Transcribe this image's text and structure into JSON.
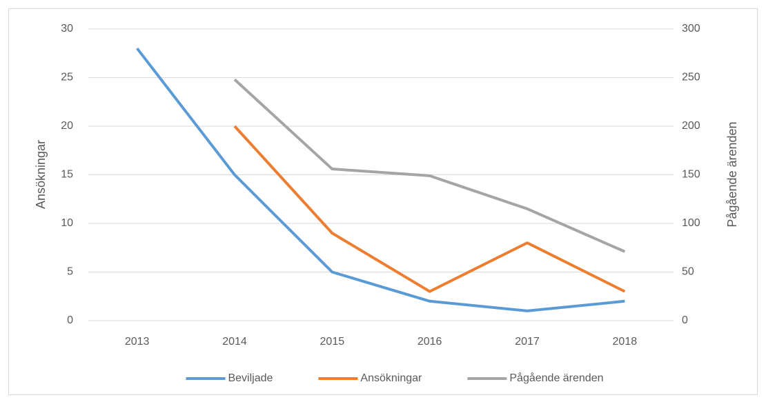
{
  "chart_data": {
    "type": "line",
    "categories": [
      "2013",
      "2014",
      "2015",
      "2016",
      "2017",
      "2018"
    ],
    "series": [
      {
        "name": "Beviljade",
        "color": "#5b9bd5",
        "values": [
          28,
          15,
          5,
          2,
          1,
          2
        ]
      },
      {
        "name": "Ansökningar",
        "color": "#ed7d31",
        "values": [
          null,
          20,
          9,
          3,
          8,
          3
        ]
      },
      {
        "name": "Pågående ärenden",
        "color": "#a5a5a5",
        "axis": "y2",
        "values": [
          null,
          248,
          156,
          149,
          115,
          71
        ]
      }
    ],
    "ylabel": "Ansökningar",
    "y2label": "Pågående ärenden",
    "ylim": [
      0,
      30
    ],
    "yticks": [
      0,
      5,
      10,
      15,
      20,
      25,
      30
    ],
    "y2lim": [
      0,
      300
    ],
    "y2ticks": [
      0,
      50,
      100,
      150,
      200,
      250,
      300
    ],
    "grid": true,
    "legend": "bottom"
  }
}
